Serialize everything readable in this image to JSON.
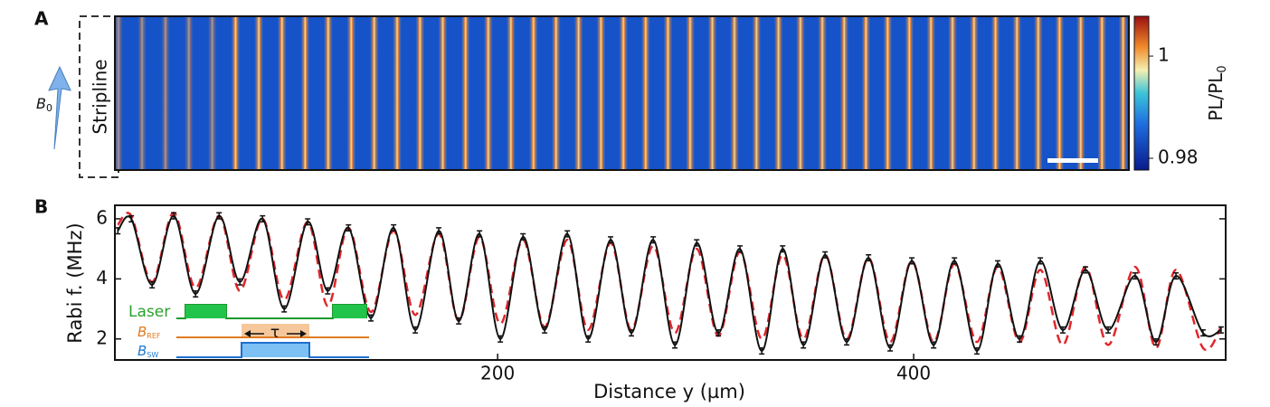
{
  "chart_data": [
    {
      "type": "heatmap",
      "panel": "A",
      "stripline": "Stripline",
      "field": "B",
      "field_sub": "0",
      "clim": [
        0.9777,
        1.0078
      ],
      "cticks": [
        1,
        0.98
      ],
      "colorbar_label": "PL/PL",
      "colorbar_label_sub": "0"
    },
    {
      "type": "line",
      "panel": "B",
      "xlabel": "Distance y (µm)",
      "ylabel": "Rabi f. (MHz)",
      "xlim": [
        16,
        550
      ],
      "ylim": [
        1.3,
        6.45
      ],
      "xticks": [
        200,
        400
      ],
      "yticks": [
        2,
        4,
        6
      ],
      "error": 0.1,
      "x": [
        17.4,
        23.9,
        33.9,
        44.3,
        54.8,
        66.1,
        76.1,
        87.0,
        97.4,
        108.7,
        118.3,
        128.3,
        139.1,
        150.0,
        160.4,
        171.7,
        181.3,
        191.3,
        201.3,
        212.2,
        222.6,
        233.5,
        243.5,
        254.3,
        264.3,
        274.8,
        285.2,
        295.7,
        306.1,
        316.5,
        327.0,
        337.0,
        347.0,
        357.4,
        367.8,
        378.3,
        388.7,
        399.1,
        409.6,
        419.6,
        430.4,
        440.4,
        450.9,
        460.9,
        471.7,
        482.6,
        493.5,
        506.5,
        516.5,
        526.1,
        539.1,
        547.8
      ],
      "series": [
        {
          "color": "#111111",
          "style": "solid",
          "errorbars": true,
          "values": [
            5.6,
            6.0,
            3.8,
            6.1,
            3.5,
            6.1,
            3.9,
            6.0,
            3.0,
            5.9,
            3.6,
            5.7,
            2.7,
            5.7,
            2.3,
            5.6,
            2.6,
            5.5,
            2.0,
            5.4,
            2.3,
            5.5,
            2.0,
            5.3,
            2.2,
            5.3,
            1.8,
            5.2,
            2.2,
            5.0,
            1.6,
            5.0,
            1.8,
            4.8,
            1.9,
            4.7,
            1.7,
            4.6,
            1.8,
            4.6,
            1.6,
            4.5,
            2.0,
            4.6,
            2.3,
            4.3,
            2.3,
            4.1,
            1.9,
            4.1,
            2.2,
            2.3
          ]
        },
        {
          "color": "#e0262a",
          "style": "dashed",
          "errorbars": false,
          "values": [
            5.8,
            6.1,
            3.9,
            6.2,
            3.7,
            6.1,
            3.6,
            6.0,
            3.3,
            5.9,
            3.1,
            5.7,
            2.9,
            5.6,
            2.8,
            5.5,
            2.6,
            5.4,
            2.5,
            5.3,
            2.4,
            5.3,
            2.3,
            5.2,
            2.3,
            5.1,
            2.2,
            5.0,
            2.1,
            4.9,
            2.0,
            4.8,
            2.0,
            4.8,
            2.0,
            4.7,
            1.9,
            4.6,
            1.9,
            4.5,
            1.9,
            4.4,
            1.9,
            4.3,
            1.8,
            4.4,
            1.8,
            4.4,
            1.7,
            4.3,
            1.7,
            2.4
          ]
        }
      ],
      "inset": {
        "laser": "Laser",
        "b_ref": "B",
        "b_ref_sub": "REF",
        "b_sw": "B",
        "b_sw_sub": "SW",
        "tau": "τ"
      }
    }
  ]
}
